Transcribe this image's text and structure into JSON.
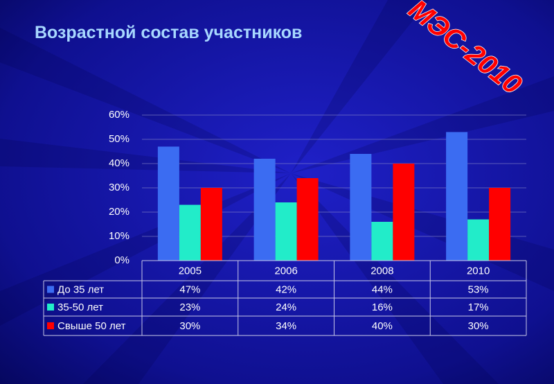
{
  "chart_data": {
    "type": "bar",
    "title": "Возрастной состав участников",
    "annotation": "МЭС-2010",
    "categories": [
      "2005",
      "2006",
      "2008",
      "2010"
    ],
    "series": [
      {
        "name": "До 35 лет",
        "color": "#3b6cf2",
        "values": [
          47,
          42,
          44,
          53
        ],
        "value_labels": [
          "47%",
          "42%",
          "44%",
          "53%"
        ]
      },
      {
        "name": "35-50 лет",
        "color": "#22ecc9",
        "values": [
          23,
          24,
          16,
          17
        ],
        "value_labels": [
          "23%",
          "24%",
          "16%",
          "17%"
        ]
      },
      {
        "name": "Свыше 50 лет",
        "color": "#ff0000",
        "values": [
          30,
          34,
          40,
          30
        ],
        "value_labels": [
          "30%",
          "34%",
          "40%",
          "30%"
        ]
      }
    ],
    "ylim": [
      0,
      60
    ],
    "yticks": [
      {
        "value": 0,
        "label": "0%"
      },
      {
        "value": 10,
        "label": "10%"
      },
      {
        "value": 20,
        "label": "20%"
      },
      {
        "value": 30,
        "label": "30%"
      },
      {
        "value": 40,
        "label": "40%"
      },
      {
        "value": 50,
        "label": "50%"
      },
      {
        "value": 60,
        "label": "60%"
      }
    ],
    "grid": true
  }
}
